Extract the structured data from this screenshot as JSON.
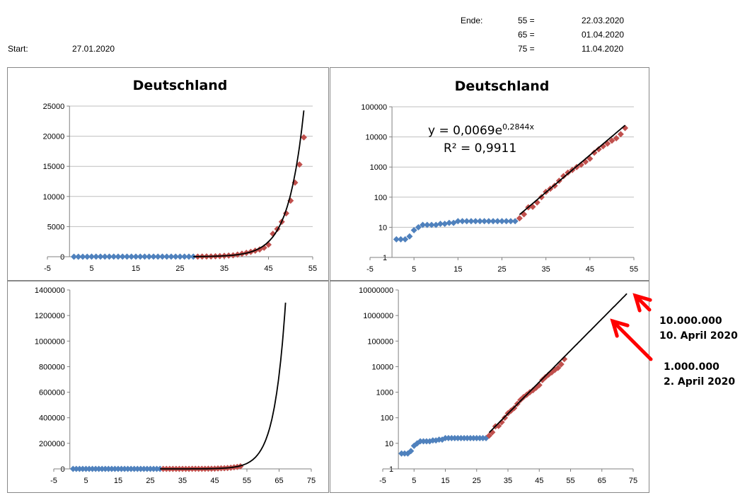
{
  "header": {
    "start_label": "Start:",
    "start_date": "27.01.2020",
    "end_label": "Ende:",
    "end_rows": [
      {
        "day": "55 =",
        "date": "22.03.2020"
      },
      {
        "day": "65 =",
        "date": "01.04.2020"
      },
      {
        "day": "75 =",
        "date": "11.04.2020"
      }
    ]
  },
  "annotations": [
    {
      "line1": "10.000.000",
      "line2": "10. April 2020"
    },
    {
      "line1": "1.000.000",
      "line2": "2. April 2020"
    }
  ],
  "colors": {
    "blue_series": "#4F81BD",
    "red_series": "#C0504D",
    "trend": "#000000",
    "arrow": "#FF0000",
    "grid": "#BFBFBF"
  },
  "measured": {
    "blue_x": [
      1,
      2,
      3,
      4,
      5,
      6,
      7,
      8,
      9,
      10,
      11,
      12,
      13,
      14,
      15,
      16,
      17,
      18,
      19,
      20,
      21,
      22,
      23,
      24,
      25,
      26,
      27,
      28
    ],
    "blue_y": [
      4,
      4,
      4,
      5,
      8,
      10,
      12,
      12,
      12,
      12,
      13,
      13,
      14,
      14,
      16,
      16,
      16,
      16,
      16,
      16,
      16,
      16,
      16,
      16,
      16,
      16,
      16,
      16
    ],
    "red_x": [
      29,
      30,
      31,
      32,
      33,
      34,
      35,
      36,
      37,
      38,
      39,
      40,
      41,
      42,
      43,
      44,
      45,
      46,
      47,
      48,
      49,
      50,
      51,
      52,
      53
    ],
    "red_y": [
      20,
      27,
      46,
      48,
      67,
      100,
      150,
      190,
      240,
      350,
      500,
      650,
      800,
      1000,
      1200,
      1500,
      1900,
      3000,
      3900,
      4900,
      6000,
      7500,
      9000,
      12300,
      19800
    ],
    "red_linear_y": [
      20,
      27,
      46,
      48,
      67,
      100,
      150,
      190,
      240,
      350,
      500,
      650,
      800,
      1000,
      1200,
      1500,
      2000,
      3800,
      4600,
      5800,
      7200,
      9300,
      12300,
      15300,
      19800
    ]
  },
  "chart_data": [
    {
      "type": "scatter",
      "title": "Deutschland",
      "yscale": "linear",
      "xlim": [
        -5,
        55
      ],
      "ylim": [
        0,
        25000
      ],
      "xticks": [
        -5,
        5,
        15,
        25,
        35,
        45,
        55
      ],
      "yticks": [
        0,
        5000,
        10000,
        15000,
        20000,
        25000
      ],
      "series_source": "measured",
      "trend": {
        "type": "exponential",
        "a": 0.0069,
        "b": 0.2844,
        "x_range": [
          28,
          53
        ]
      },
      "grid": "horizontal"
    },
    {
      "type": "scatter",
      "title": "Deutschland",
      "yscale": "log",
      "xlim": [
        -5,
        55
      ],
      "ylim": [
        1,
        100000
      ],
      "xticks": [
        -5,
        5,
        15,
        25,
        35,
        45,
        55
      ],
      "yticks": [
        1,
        10,
        100,
        1000,
        10000,
        100000
      ],
      "series_source": "measured",
      "trend": {
        "type": "exponential",
        "a": 0.0069,
        "b": 0.2844,
        "x_range": [
          29,
          53
        ]
      },
      "equation": {
        "prefix": "y = 0,0069e",
        "exponent": "0,2844x",
        "r2": "R² = 0,9911"
      },
      "grid": "horizontal"
    },
    {
      "type": "scatter",
      "title": "",
      "yscale": "linear",
      "xlim": [
        -5,
        75
      ],
      "ylim": [
        0,
        1400000
      ],
      "xticks": [
        -5,
        5,
        15,
        25,
        35,
        45,
        55,
        65,
        75
      ],
      "yticks": [
        0,
        200000,
        400000,
        600000,
        800000,
        1000000,
        1200000,
        1400000
      ],
      "series_source": "measured",
      "trend": {
        "type": "exponential",
        "a": 0.0069,
        "b": 0.2844,
        "x_range": [
          28,
          67
        ]
      },
      "grid": "none"
    },
    {
      "type": "scatter",
      "title": "",
      "yscale": "log",
      "xlim": [
        -5,
        75
      ],
      "ylim": [
        1,
        10000000
      ],
      "xticks": [
        -5,
        5,
        15,
        25,
        35,
        45,
        55,
        65,
        75
      ],
      "yticks": [
        1,
        10,
        100,
        1000,
        10000,
        100000,
        1000000,
        10000000
      ],
      "series_source": "measured",
      "trend": {
        "type": "exponential",
        "a": 0.0069,
        "b": 0.2844,
        "x_range": [
          29,
          73
        ]
      },
      "grid": "none"
    }
  ]
}
